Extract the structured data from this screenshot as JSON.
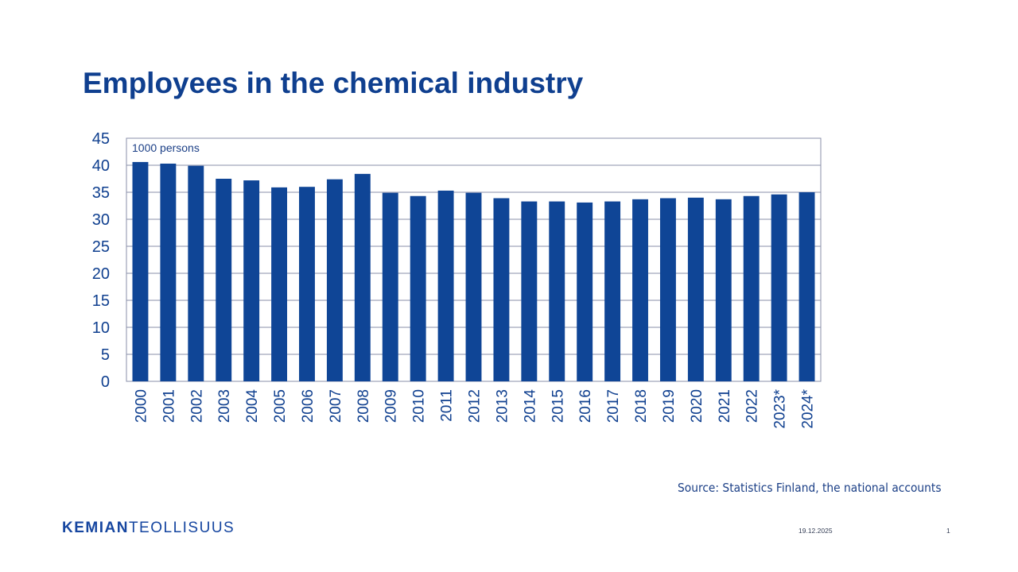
{
  "slide": {
    "title": "Employees in the chemical industry",
    "source": "Source: Statistics Finland, the national accounts",
    "logo_bold": "KEMIAN",
    "logo_light": "TEOLLISUUS",
    "date": "19.12.2025",
    "page_number": "1"
  },
  "colors": {
    "bar": "#0f4596",
    "text": "#0f3f8f",
    "grid": "#8a8fa8"
  },
  "chart_data": {
    "type": "bar",
    "title": "Employees in the chemical industry",
    "unit_label": "1000 persons",
    "xlabel": "",
    "ylabel": "1000 persons",
    "ylim": [
      0,
      45
    ],
    "yticks": [
      0,
      5,
      10,
      15,
      20,
      25,
      30,
      35,
      40,
      45
    ],
    "grid": true,
    "legend": "none",
    "categories": [
      "2000",
      "2001",
      "2002",
      "2003",
      "2004",
      "2005",
      "2006",
      "2007",
      "2008",
      "2009",
      "2010",
      "2011",
      "2012",
      "2013",
      "2014",
      "2015",
      "2016",
      "2017",
      "2018",
      "2019",
      "2020",
      "2021",
      "2022",
      "2023*",
      "2024*"
    ],
    "values": [
      40.6,
      40.3,
      39.9,
      37.5,
      37.2,
      35.9,
      36.0,
      37.4,
      38.4,
      34.9,
      34.3,
      35.3,
      34.9,
      33.9,
      33.3,
      33.3,
      33.1,
      33.3,
      33.7,
      33.9,
      34.0,
      33.7,
      34.3,
      34.6,
      35.0
    ]
  }
}
